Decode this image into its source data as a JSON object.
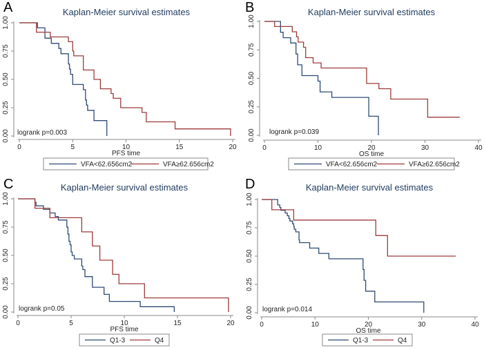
{
  "colors": {
    "series_1": "#2d4a73",
    "series_2": "#9e3a3a",
    "title": "#1e3a5f"
  },
  "chart_data": [
    {
      "type": "line",
      "subtype": "kaplan-meier-step",
      "panel_label": "A",
      "title": "Kaplan-Meier survival estimates",
      "xlabel": "PFS time",
      "ylabel": "",
      "xlim": [
        0,
        20
      ],
      "ylim": [
        0,
        1
      ],
      "xticks": [
        "0",
        "5",
        "10",
        "15",
        "20"
      ],
      "yticks": [
        "0.00",
        "0.25",
        "0.50",
        "0.75",
        "1.00"
      ],
      "annotation": "logrank p=0.003",
      "legend_position": "bottom",
      "series": [
        {
          "name": "VFA<62.656cm2",
          "t": [
            0,
            1.7,
            2.4,
            3.0,
            3.7,
            3.9,
            4.6,
            4.7,
            4.8,
            5.0,
            6.0,
            6.2,
            6.3,
            6.4,
            7.0,
            8.2
          ],
          "s": [
            1,
            0.955,
            0.864,
            0.818,
            0.773,
            0.727,
            0.636,
            0.591,
            0.545,
            0.455,
            0.409,
            0.318,
            0.273,
            0.227,
            0.136,
            0.091
          ],
          "end": 8.2,
          "end_s": 0
        },
        {
          "name": "VFA≥62.656cm2",
          "t": [
            0,
            1.6,
            2.9,
            4.6,
            5.0,
            5.1,
            6.0,
            7.0,
            7.6,
            8.6,
            8.8,
            9.5,
            11.5,
            11.9,
            14.6
          ],
          "s": [
            1,
            0.917,
            0.875,
            0.833,
            0.75,
            0.708,
            0.583,
            0.5,
            0.417,
            0.375,
            0.333,
            0.25,
            0.208,
            0.125,
            0.063
          ],
          "end": 19.8,
          "end_s": 0
        }
      ]
    },
    {
      "type": "line",
      "subtype": "kaplan-meier-step",
      "panel_label": "B",
      "title": "Kaplan-Meier survival estimates",
      "xlabel": "OS time",
      "ylabel": "",
      "xlim": [
        0,
        40
      ],
      "ylim": [
        0,
        1
      ],
      "xticks": [
        "0",
        "10",
        "20",
        "30",
        "40"
      ],
      "yticks": [
        "0.00",
        "0.25",
        "0.50",
        "0.75",
        "1.00"
      ],
      "annotation": "logrank p=0.039",
      "legend_position": "bottom",
      "series": [
        {
          "name": "VFA<62.656cm2",
          "t": [
            0,
            3.0,
            3.5,
            4.9,
            5.9,
            6.2,
            7.0,
            10.0,
            10.4,
            12.6,
            19.5
          ],
          "s": [
            1,
            0.905,
            0.857,
            0.81,
            0.714,
            0.619,
            0.524,
            0.476,
            0.381,
            0.333,
            0.167
          ],
          "end": 21.3,
          "end_s": 0
        },
        {
          "name": "VFA≥62.656cm2",
          "t": [
            0,
            1.9,
            5.2,
            6.0,
            6.3,
            7.3,
            7.7,
            9.1,
            10.6,
            19.1,
            21.4,
            23.6,
            30.5
          ],
          "s": [
            1,
            0.955,
            0.909,
            0.864,
            0.818,
            0.773,
            0.682,
            0.636,
            0.591,
            0.455,
            0.409,
            0.318,
            0.159
          ],
          "end": 36.5,
          "end_s": 0.159
        }
      ]
    },
    {
      "type": "line",
      "subtype": "kaplan-meier-step",
      "panel_label": "C",
      "title": "Kaplan-Meier survival estimates",
      "xlabel": "PFS time",
      "ylabel": "",
      "xlim": [
        0,
        20
      ],
      "ylim": [
        0,
        1
      ],
      "xticks": [
        "0",
        "5",
        "10",
        "15",
        "20"
      ],
      "yticks": [
        "0.00",
        "0.25",
        "0.50",
        "0.75",
        "1.00"
      ],
      "annotation": "logrank p=0.05",
      "legend_position": "bottom",
      "series": [
        {
          "name": "Q1-3",
          "t": [
            0,
            1.6,
            1.7,
            2.4,
            3.0,
            3.5,
            3.8,
            4.6,
            4.7,
            4.8,
            4.9,
            5.0,
            5.1,
            5.3,
            6.0,
            6.1,
            6.3,
            7.0,
            8.1,
            8.6,
            11.5
          ],
          "s": [
            1,
            0.969,
            0.938,
            0.906,
            0.875,
            0.844,
            0.813,
            0.75,
            0.688,
            0.625,
            0.594,
            0.531,
            0.5,
            0.469,
            0.406,
            0.375,
            0.313,
            0.219,
            0.156,
            0.094,
            0.047
          ],
          "end": 14.7,
          "end_s": 0
        },
        {
          "name": "Q4",
          "t": [
            0,
            1.6,
            3.0,
            6.0,
            7.0,
            7.7,
            8.9,
            9.5,
            11.9
          ],
          "s": [
            1,
            0.917,
            0.833,
            0.708,
            0.583,
            0.458,
            0.333,
            0.25,
            0.125
          ],
          "end": 19.8,
          "end_s": 0
        }
      ]
    },
    {
      "type": "line",
      "subtype": "kaplan-meier-step",
      "panel_label": "D",
      "title": "Kaplan-Meier survival estimates",
      "xlabel": "OS time",
      "ylabel": "",
      "xlim": [
        0,
        40
      ],
      "ylim": [
        0,
        1
      ],
      "xticks": [
        "0",
        "10",
        "20",
        "30",
        "40"
      ],
      "yticks": [
        "0.00",
        "0.25",
        "0.50",
        "0.75",
        "1.00"
      ],
      "annotation": "logrank p=0.014",
      "legend_position": "bottom",
      "series": [
        {
          "name": "Q1-3",
          "t": [
            0,
            3.0,
            3.4,
            3.6,
            4.4,
            4.8,
            5.1,
            5.3,
            5.8,
            6.0,
            6.1,
            6.4,
            7.0,
            7.1,
            9.0,
            10.7,
            12.6,
            19.0,
            19.2,
            19.5,
            21.2
          ],
          "s": [
            1,
            0.952,
            0.929,
            0.905,
            0.881,
            0.857,
            0.833,
            0.81,
            0.786,
            0.762,
            0.738,
            0.714,
            0.643,
            0.619,
            0.571,
            0.524,
            0.476,
            0.381,
            0.286,
            0.19,
            0.095
          ],
          "end": 30.4,
          "end_s": 0
        },
        {
          "name": "Q4",
          "t": [
            0,
            1.9,
            6.0,
            21.4,
            23.6
          ],
          "s": [
            1,
            0.909,
            0.818,
            0.682,
            0.5
          ],
          "end": 36.4,
          "end_s": 0.5
        }
      ]
    }
  ]
}
